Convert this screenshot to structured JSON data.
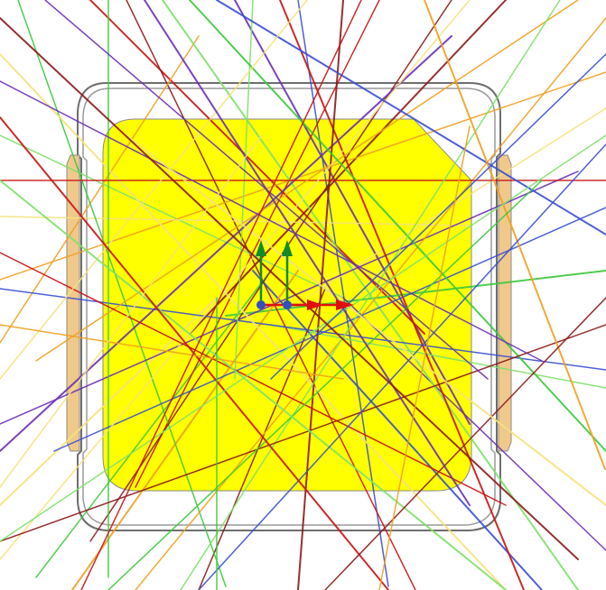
{
  "colors": {
    "background": "#ffffff",
    "package_fill": "#ffff00",
    "package_edge": "#8a8a8a",
    "frame_outline": "#6e6e6e",
    "side_pad": "#f0c98a",
    "ray_red": "#c81414",
    "ray_darkred": "#8b1a1a",
    "ray_orange": "#f0a020",
    "ray_pale_yellow": "#f5e27a",
    "ray_green": "#3cc83c",
    "ray_light_green": "#7ee06a",
    "ray_purple": "#6a2fb8",
    "ray_blue": "#3a4fd0",
    "axis_x": "#e01010",
    "axis_y": "#118c2a",
    "axis_origin": "#3050c0"
  },
  "scene": {
    "package": "rounded-square-yellow-die",
    "frame": "rounded-rect-outline",
    "side_pads": [
      "left-pad",
      "right-pad"
    ],
    "gizmos": [
      "axis-triad-left",
      "axis-triad-right"
    ],
    "ray_count": 60
  }
}
